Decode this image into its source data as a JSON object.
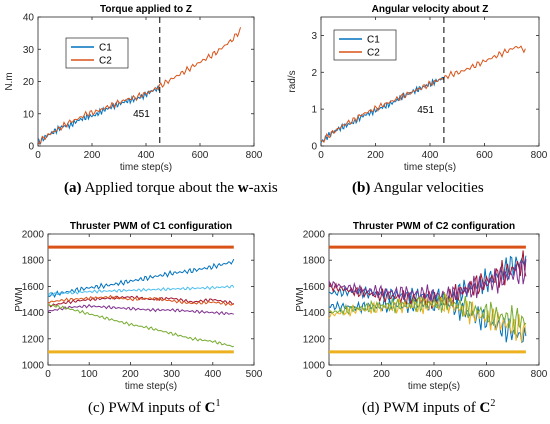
{
  "captions": [
    {
      "letter": "(a)",
      "text": "Applied torque about the ",
      "bold": "w",
      "tail": "-axis"
    },
    {
      "letter": "(b)",
      "text": "Angular velocities",
      "bold": "",
      "tail": ""
    },
    {
      "letter": "(c)",
      "text": "PWM inputs of ",
      "bold": "C",
      "tail": "",
      "sup": "1"
    },
    {
      "letter": "(d)",
      "text": "PWM inputs of ",
      "bold": "C",
      "tail": "",
      "sup": "2"
    }
  ],
  "colors": {
    "c1": "#0072bd",
    "c2": "#d95319",
    "yellow": "#edb120",
    "purple": "#7e2f8e",
    "green": "#77ac30",
    "cyan": "#4dbeee",
    "darkred": "#a2142f"
  },
  "chart_data": [
    {
      "type": "line",
      "title": "Torque applied to Z",
      "xlabel": "time step(s)",
      "ylabel": "N.m",
      "xlim": [
        0,
        800
      ],
      "ylim": [
        0,
        40
      ],
      "xticks": [
        0,
        200,
        400,
        600,
        800
      ],
      "yticks": [
        0,
        10,
        20,
        30,
        40
      ],
      "legend": {
        "placement": "top-left",
        "entries": [
          "C1",
          "C2"
        ]
      },
      "annotation": {
        "text": "451",
        "x": 451,
        "y": 9
      },
      "series": [
        {
          "name": "C1",
          "color": "#0072bd",
          "x": [
            0,
            30,
            60,
            90,
            120,
            150,
            180,
            210,
            240,
            270,
            300,
            330,
            360,
            390,
            420,
            451
          ],
          "y": [
            1,
            3,
            4.5,
            6,
            6.5,
            8,
            9,
            9.5,
            11,
            12,
            13,
            14,
            14.5,
            15.5,
            17,
            18
          ]
        },
        {
          "name": "C2",
          "color": "#d95319",
          "x": [
            0,
            30,
            60,
            90,
            120,
            150,
            180,
            210,
            240,
            270,
            300,
            330,
            360,
            390,
            420,
            450,
            480,
            510,
            540,
            570,
            600,
            630,
            660,
            690,
            720,
            750
          ],
          "y": [
            1,
            3,
            4.5,
            6,
            7.5,
            8.5,
            10,
            10.5,
            11.5,
            12.5,
            13.5,
            14.5,
            15,
            16,
            17,
            18.5,
            20,
            21.5,
            23,
            24.5,
            26,
            27.5,
            29,
            31,
            33,
            36
          ]
        }
      ]
    },
    {
      "type": "line",
      "title": "Angular velocity about Z",
      "xlabel": "time step(s)",
      "ylabel": "rad/s",
      "xlim": [
        0,
        800
      ],
      "ylim": [
        0,
        3.5
      ],
      "xticks": [
        0,
        200,
        400,
        600,
        800
      ],
      "yticks": [
        0,
        1,
        2,
        3
      ],
      "legend": {
        "placement": "top-left",
        "entries": [
          "C1",
          "C2"
        ]
      },
      "annotation": {
        "text": "451",
        "x": 451,
        "y": 0.9
      },
      "series": [
        {
          "name": "C1",
          "color": "#0072bd",
          "x": [
            0,
            30,
            60,
            90,
            120,
            150,
            180,
            210,
            240,
            270,
            300,
            330,
            360,
            390,
            420,
            451
          ],
          "y": [
            0.1,
            0.3,
            0.45,
            0.55,
            0.65,
            0.8,
            0.9,
            1.0,
            1.1,
            1.2,
            1.35,
            1.45,
            1.55,
            1.65,
            1.75,
            1.85
          ]
        },
        {
          "name": "C2",
          "color": "#d95319",
          "x": [
            0,
            30,
            60,
            90,
            120,
            150,
            180,
            210,
            240,
            270,
            300,
            330,
            360,
            390,
            420,
            450,
            480,
            510,
            540,
            570,
            600,
            630,
            660,
            690,
            720,
            750
          ],
          "y": [
            0.1,
            0.3,
            0.45,
            0.6,
            0.7,
            0.85,
            0.95,
            1.05,
            1.15,
            1.25,
            1.35,
            1.45,
            1.55,
            1.65,
            1.75,
            1.85,
            1.95,
            2.0,
            2.1,
            2.2,
            2.3,
            2.4,
            2.5,
            2.6,
            2.7,
            2.6
          ]
        }
      ]
    },
    {
      "type": "line",
      "title": "Thruster PWM of C1 configuration",
      "xlabel": "time step(s)",
      "ylabel": "PWM",
      "xlim": [
        0,
        500
      ],
      "ylim": [
        1000,
        2000
      ],
      "xticks": [
        0,
        100,
        200,
        300,
        400,
        500
      ],
      "yticks": [
        1000,
        1200,
        1400,
        1600,
        1800,
        2000
      ],
      "series": [
        {
          "color": "#d95319",
          "x": [
            0,
            451
          ],
          "y": [
            1900,
            1900
          ]
        },
        {
          "color": "#edb120",
          "x": [
            0,
            451
          ],
          "y": [
            1100,
            1100
          ]
        },
        {
          "color": "#0072bd",
          "x": [
            0,
            50,
            100,
            150,
            200,
            250,
            300,
            350,
            400,
            451
          ],
          "y": [
            1530,
            1560,
            1590,
            1610,
            1640,
            1670,
            1700,
            1720,
            1750,
            1790
          ]
        },
        {
          "color": "#4dbeee",
          "x": [
            0,
            50,
            100,
            150,
            200,
            250,
            300,
            350,
            400,
            451
          ],
          "y": [
            1540,
            1550,
            1560,
            1565,
            1570,
            1575,
            1580,
            1585,
            1590,
            1600
          ]
        },
        {
          "color": "#a2142f",
          "x": [
            0,
            50,
            100,
            150,
            200,
            250,
            300,
            350,
            400,
            451
          ],
          "y": [
            1450,
            1480,
            1500,
            1510,
            1520,
            1500,
            1510,
            1480,
            1500,
            1470
          ]
        },
        {
          "color": "#d95319",
          "x": [
            0,
            50,
            100,
            150,
            200,
            250,
            300,
            350,
            400,
            451
          ],
          "y": [
            1480,
            1500,
            1510,
            1520,
            1500,
            1510,
            1490,
            1470,
            1480,
            1460
          ]
        },
        {
          "color": "#7e2f8e",
          "x": [
            0,
            50,
            100,
            150,
            200,
            250,
            300,
            350,
            400,
            451
          ],
          "y": [
            1410,
            1440,
            1450,
            1440,
            1430,
            1420,
            1420,
            1410,
            1400,
            1390
          ]
        },
        {
          "color": "#77ac30",
          "x": [
            0,
            50,
            100,
            150,
            200,
            250,
            300,
            350,
            400,
            451
          ],
          "y": [
            1460,
            1430,
            1390,
            1350,
            1310,
            1280,
            1240,
            1200,
            1180,
            1140
          ]
        }
      ]
    },
    {
      "type": "line",
      "title": "Thruster PWM of C2 configuration",
      "xlabel": "time step(s)",
      "ylabel": "PWM",
      "xlim": [
        0,
        800
      ],
      "ylim": [
        1000,
        2000
      ],
      "xticks": [
        0,
        200,
        400,
        600,
        800
      ],
      "yticks": [
        1000,
        1200,
        1400,
        1600,
        1800,
        2000
      ],
      "series": [
        {
          "color": "#d95319",
          "x": [
            0,
            750
          ],
          "y": [
            1900,
            1900
          ]
        },
        {
          "color": "#edb120",
          "x": [
            0,
            750
          ],
          "y": [
            1100,
            1100
          ]
        },
        {
          "color": "#0072bd",
          "x": [
            0,
            100,
            200,
            300,
            400,
            450,
            500,
            600,
            700,
            750
          ],
          "y": [
            1550,
            1560,
            1540,
            1530,
            1520,
            1500,
            1560,
            1640,
            1760,
            1800
          ]
        },
        {
          "color": "#0072bd",
          "x": [
            0,
            100,
            200,
            300,
            400,
            450,
            500,
            600,
            700,
            750
          ],
          "y": [
            1450,
            1440,
            1450,
            1460,
            1470,
            1480,
            1420,
            1340,
            1250,
            1200
          ]
        },
        {
          "color": "#a2142f",
          "x": [
            0,
            100,
            200,
            300,
            400,
            450,
            500,
            600,
            700,
            750
          ],
          "y": [
            1600,
            1560,
            1530,
            1510,
            1500,
            1500,
            1560,
            1640,
            1730,
            1780
          ]
        },
        {
          "color": "#7e2f8e",
          "x": [
            0,
            100,
            200,
            300,
            400,
            450,
            500,
            600,
            700,
            750
          ],
          "y": [
            1620,
            1580,
            1560,
            1550,
            1540,
            1520,
            1560,
            1620,
            1690,
            1720
          ]
        },
        {
          "color": "#edb120",
          "x": [
            0,
            100,
            200,
            300,
            400,
            450,
            500,
            600,
            700,
            750
          ],
          "y": [
            1380,
            1420,
            1440,
            1450,
            1460,
            1470,
            1430,
            1360,
            1290,
            1260
          ]
        },
        {
          "color": "#77ac30",
          "x": [
            0,
            100,
            200,
            300,
            400,
            450,
            500,
            600,
            700,
            750
          ],
          "y": [
            1400,
            1430,
            1450,
            1460,
            1470,
            1480,
            1450,
            1400,
            1350,
            1330
          ]
        }
      ]
    }
  ]
}
